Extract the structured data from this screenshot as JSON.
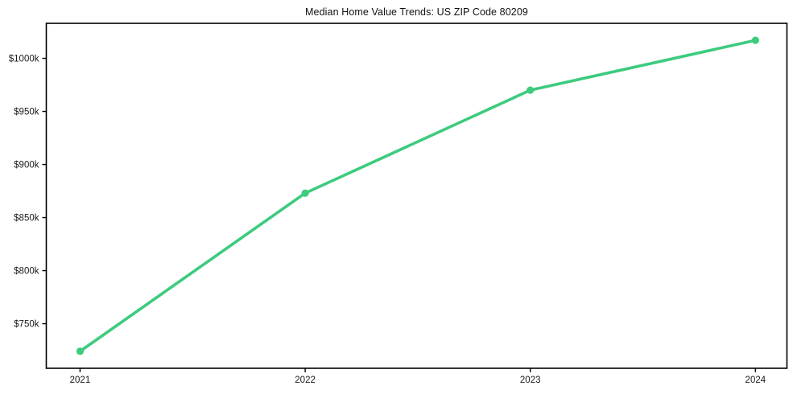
{
  "chart_data": {
    "type": "line",
    "title": "Median Home Value Trends: US ZIP Code 80209",
    "x": [
      2021,
      2022,
      2023,
      2024
    ],
    "values": [
      724,
      873,
      970,
      1017
    ],
    "unit": "USD thousands",
    "x_ticks": [
      {
        "value": 2021,
        "label": "2021"
      },
      {
        "value": 2022,
        "label": "2022"
      },
      {
        "value": 2023,
        "label": "2023"
      },
      {
        "value": 2024,
        "label": "2024"
      }
    ],
    "y_ticks": [
      {
        "value": 750,
        "label": "$750k"
      },
      {
        "value": 800,
        "label": "$800k"
      },
      {
        "value": 850,
        "label": "$850k"
      },
      {
        "value": 900,
        "label": "$900k"
      },
      {
        "value": 950,
        "label": "$950k"
      },
      {
        "value": 1000,
        "label": "$1000k"
      }
    ],
    "xlim": [
      2020.85,
      2024.14
    ],
    "ylim": [
      708,
      1033
    ],
    "xlabel": "",
    "ylabel": "",
    "grid": false,
    "line_color": "#3dcb7e",
    "marker": "circle",
    "axis_color": "#000000",
    "text_color": "#1a1a1a",
    "background_color": "#ffffff"
  }
}
